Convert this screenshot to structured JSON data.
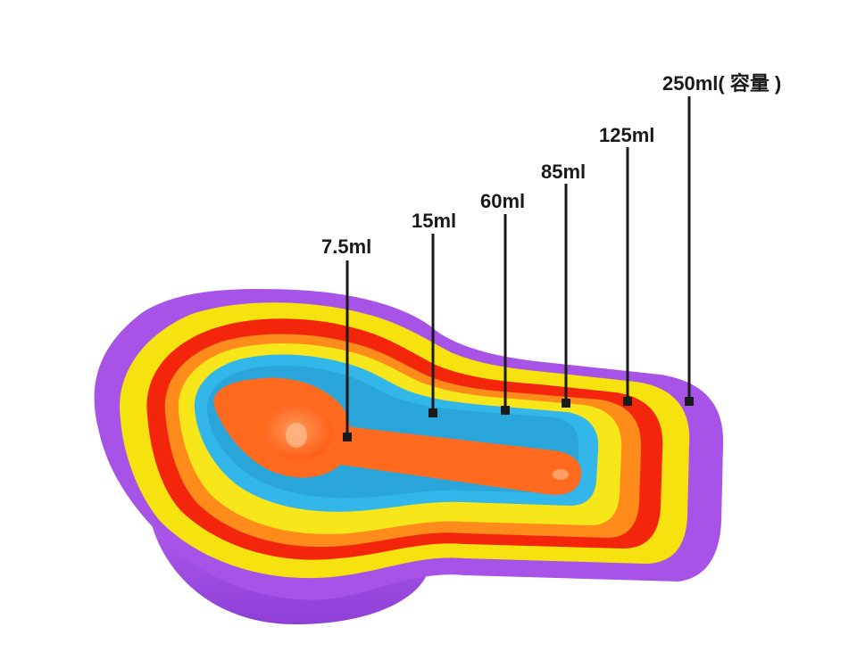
{
  "photo": {
    "subject": "nested rainbow measuring cups and spoon",
    "colors": {
      "purple": "#a34fe0",
      "purple_dark": "#7a2fb8",
      "yellow": "#f6e20e",
      "red": "#f3260c",
      "orange": "#ff7a1f",
      "cyan": "#33b6ea",
      "spoon": "#ff6a1e",
      "leader": "#1a1a1a"
    }
  },
  "capacities": [
    {
      "label": "7.5ml"
    },
    {
      "label": "15ml"
    },
    {
      "label": "60ml"
    },
    {
      "label": "85ml"
    },
    {
      "label": "125ml"
    },
    {
      "label": "250ml( 容量 )"
    }
  ]
}
